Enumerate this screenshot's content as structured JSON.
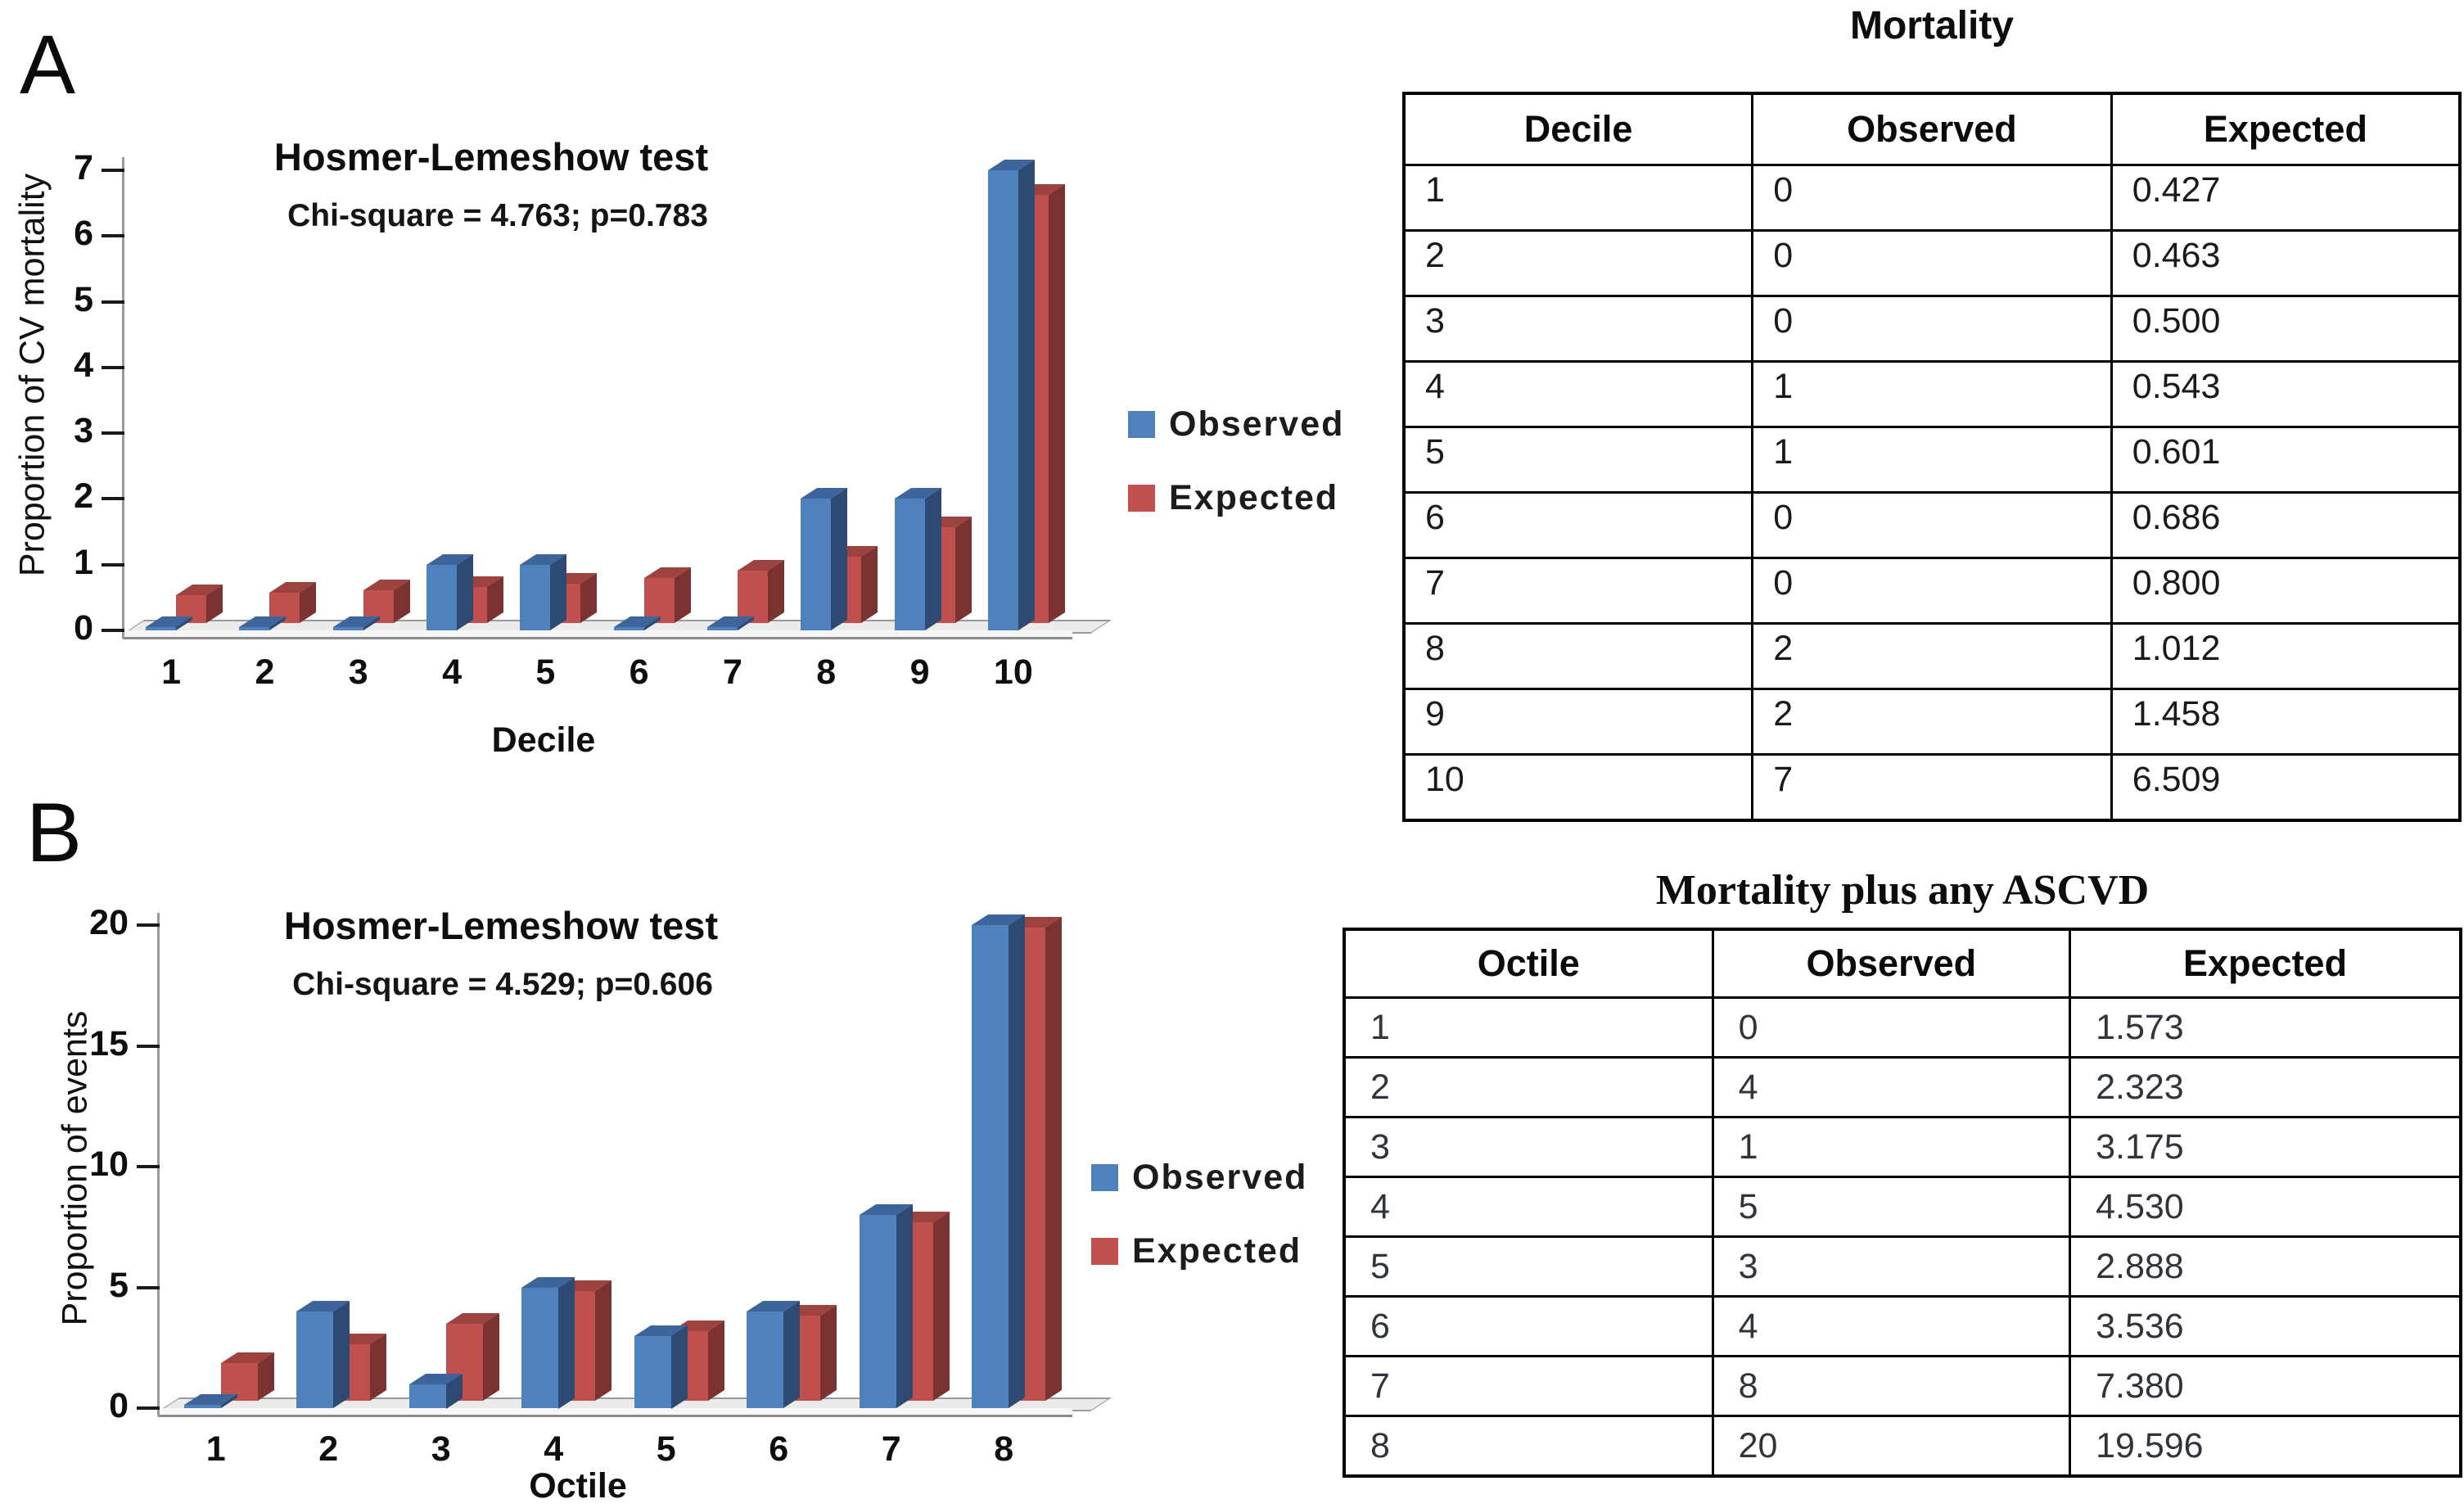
{
  "figure": {
    "panel_a_label": "A",
    "panel_b_label": "B"
  },
  "legend": {
    "observed": "Observed",
    "expected": "Expected"
  },
  "chart_data": [
    {
      "type": "bar",
      "style": "3d-clustered",
      "title": "Hosmer-Lemeshow test",
      "subtitle": "Chi-square = 4.763; p=0.783",
      "xlabel": "Decile",
      "ylabel": "Proportion of CV mortality",
      "categories": [
        "1",
        "2",
        "3",
        "4",
        "5",
        "6",
        "7",
        "8",
        "9",
        "10"
      ],
      "series": [
        {
          "name": "Observed",
          "values": [
            0,
            0,
            0,
            1,
            1,
            0,
            0,
            2,
            2,
            7
          ]
        },
        {
          "name": "Expected",
          "values": [
            0.427,
            0.463,
            0.5,
            0.543,
            0.601,
            0.686,
            0.8,
            1.012,
            1.458,
            6.509
          ]
        }
      ],
      "ylim": [
        0,
        7
      ],
      "ytick_step": 1,
      "grid": false,
      "legend_position": "right"
    },
    {
      "type": "bar",
      "style": "3d-clustered",
      "title": "Hosmer-Lemeshow test",
      "subtitle": "Chi-square = 4.529; p=0.606",
      "xlabel": "Octile",
      "ylabel": "Proportion of events",
      "categories": [
        "1",
        "2",
        "3",
        "4",
        "5",
        "6",
        "7",
        "8"
      ],
      "series": [
        {
          "name": "Observed",
          "values": [
            0,
            4,
            1,
            5,
            3,
            4,
            8,
            20
          ]
        },
        {
          "name": "Expected",
          "values": [
            1.573,
            2.323,
            3.175,
            4.53,
            2.888,
            3.536,
            7.38,
            19.596
          ]
        }
      ],
      "ylim": [
        0,
        20
      ],
      "ytick_step": 5,
      "grid": false,
      "legend_position": "right"
    }
  ],
  "tables": [
    {
      "title": "Mortality",
      "columns": [
        "Decile",
        "Observed",
        "Expected"
      ],
      "rows": [
        [
          "1",
          "0",
          "0.427"
        ],
        [
          "2",
          "0",
          "0.463"
        ],
        [
          "3",
          "0",
          "0.500"
        ],
        [
          "4",
          "1",
          "0.543"
        ],
        [
          "5",
          "1",
          "0.601"
        ],
        [
          "6",
          "0",
          "0.686"
        ],
        [
          "7",
          "0",
          "0.800"
        ],
        [
          "8",
          "2",
          "1.012"
        ],
        [
          "9",
          "2",
          "1.458"
        ],
        [
          "10",
          "7",
          "6.509"
        ]
      ]
    },
    {
      "title": "Mortality plus any ASCVD",
      "columns": [
        "Octile",
        "Observed",
        "Expected"
      ],
      "rows": [
        [
          "1",
          "0",
          "1.573"
        ],
        [
          "2",
          "4",
          "2.323"
        ],
        [
          "3",
          "1",
          "3.175"
        ],
        [
          "4",
          "5",
          "4.530"
        ],
        [
          "5",
          "3",
          "2.888"
        ],
        [
          "6",
          "4",
          "3.536"
        ],
        [
          "7",
          "8",
          "7.380"
        ],
        [
          "8",
          "20",
          "19.596"
        ]
      ]
    }
  ],
  "colors": {
    "observed_face": "#4F81BD",
    "observed_top": "#3D659C",
    "observed_side": "#2E4A73",
    "expected_face": "#C0504D",
    "expected_top": "#9E4240",
    "expected_side": "#7A3330",
    "axis": "#9A9A9A",
    "floor": "#EBEBEB",
    "floor_border": "#9A9A9A"
  }
}
